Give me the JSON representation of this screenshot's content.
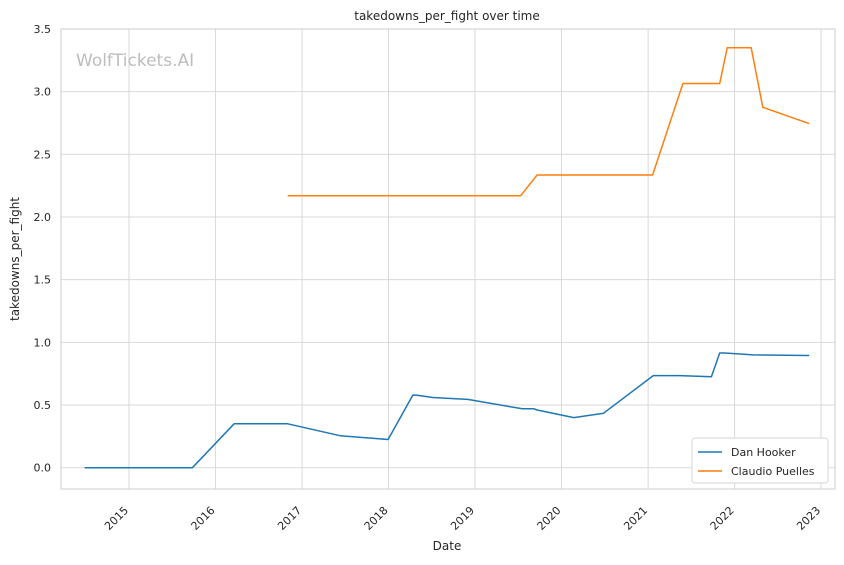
{
  "chart_data": {
    "type": "line",
    "title": "takedowns_per_fight over time",
    "xlabel": "Date",
    "ylabel": "takedowns_per_fight",
    "watermark": "WolfTickets.AI",
    "x_ticks": [
      "2015",
      "2016",
      "2017",
      "2018",
      "2019",
      "2020",
      "2021",
      "2022",
      "2023"
    ],
    "y_ticks": [
      "0.0",
      "0.5",
      "1.0",
      "1.5",
      "2.0",
      "2.5",
      "3.0",
      "3.5"
    ],
    "xlim": [
      "2014-03-20",
      "2023-03-01"
    ],
    "ylim": [
      -0.17,
      3.5
    ],
    "grid": true,
    "legend_position": "lower-right",
    "series": [
      {
        "name": "Dan Hooker",
        "color": "#1f77b4",
        "points": [
          {
            "x": "2014-06-28",
            "y": 0.0
          },
          {
            "x": "2015-09-26",
            "y": 0.0
          },
          {
            "x": "2016-03-20",
            "y": 0.35
          },
          {
            "x": "2016-11-01",
            "y": 0.35
          },
          {
            "x": "2017-06-10",
            "y": 0.255
          },
          {
            "x": "2017-12-30",
            "y": 0.225
          },
          {
            "x": "2018-04-14",
            "y": 0.58
          },
          {
            "x": "2018-05-01",
            "y": 0.578
          },
          {
            "x": "2018-07-07",
            "y": 0.56
          },
          {
            "x": "2018-12-01",
            "y": 0.545
          },
          {
            "x": "2019-07-20",
            "y": 0.47
          },
          {
            "x": "2019-09-07",
            "y": 0.47
          },
          {
            "x": "2019-09-20",
            "y": 0.46
          },
          {
            "x": "2020-02-22",
            "y": 0.4
          },
          {
            "x": "2020-06-27",
            "y": 0.435
          },
          {
            "x": "2021-01-23",
            "y": 0.735
          },
          {
            "x": "2021-05-15",
            "y": 0.735
          },
          {
            "x": "2021-09-25",
            "y": 0.725
          },
          {
            "x": "2021-10-30",
            "y": 0.915
          },
          {
            "x": "2021-11-20",
            "y": 0.915
          },
          {
            "x": "2022-03-20",
            "y": 0.9
          },
          {
            "x": "2022-11-12",
            "y": 0.895
          }
        ]
      },
      {
        "name": "Claudio Puelles",
        "color": "#ff7f0e",
        "points": [
          {
            "x": "2016-11-01",
            "y": 2.17
          },
          {
            "x": "2019-07-13",
            "y": 2.17
          },
          {
            "x": "2019-09-20",
            "y": 2.335
          },
          {
            "x": "2021-01-20",
            "y": 2.335
          },
          {
            "x": "2021-05-28",
            "y": 3.065
          },
          {
            "x": "2021-10-30",
            "y": 3.065
          },
          {
            "x": "2021-12-01",
            "y": 3.35
          },
          {
            "x": "2022-03-12",
            "y": 3.35
          },
          {
            "x": "2022-04-30",
            "y": 2.875
          },
          {
            "x": "2022-11-12",
            "y": 2.745
          }
        ]
      }
    ]
  }
}
